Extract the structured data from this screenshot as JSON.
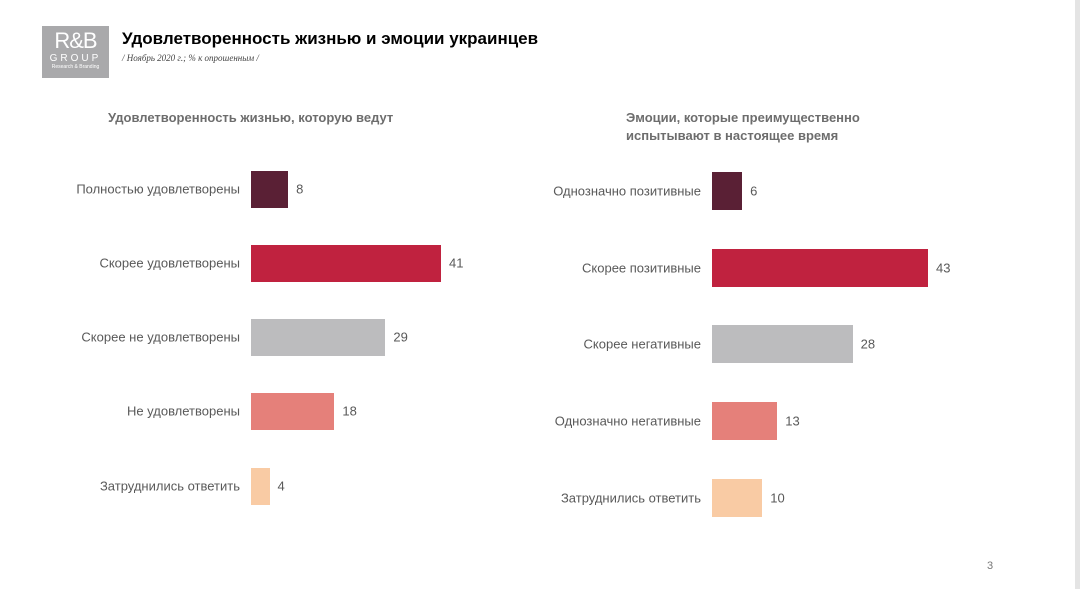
{
  "logo": {
    "main": "R&B",
    "group": "GROUP",
    "sub": "Research & Branding"
  },
  "header": {
    "title": "Удовлетворенность жизнью и эмоции украинцев",
    "subtitle": "/ Ноябрь 2020 г.; % к опрошенным /"
  },
  "page_number": "3",
  "chart_data": [
    {
      "type": "bar",
      "orientation": "horizontal",
      "title": "Удовлетворенность жизнью, которую ведут",
      "categories": [
        "Полностью удовлетворены",
        "Скорее удовлетворены",
        "Скорее не удовлетворены",
        "Не удовлетворены",
        "Затруднились ответить"
      ],
      "values": [
        8,
        41,
        29,
        18,
        4
      ],
      "colors": [
        "#5a2035",
        "#c0223f",
        "#bcbcbe",
        "#e5807a",
        "#f9cba4"
      ],
      "xlim": [
        0,
        41
      ]
    },
    {
      "type": "bar",
      "orientation": "horizontal",
      "title": "Эмоции, которые преимущественно испытывают в настоящее время",
      "categories": [
        "Однозначно позитивные",
        "Скорее позитивные",
        "Скорее негативные",
        "Однозначно негативные",
        "Затруднились ответить"
      ],
      "values": [
        6,
        43,
        28,
        13,
        10
      ],
      "colors": [
        "#5a2035",
        "#c0223f",
        "#bcbcbe",
        "#e5807a",
        "#f9cba4"
      ],
      "xlim": [
        0,
        43
      ]
    }
  ]
}
